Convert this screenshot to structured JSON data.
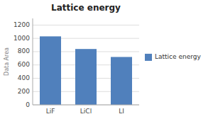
{
  "chart_data": {
    "type": "bar",
    "title": "Lattice energy",
    "categories": [
      "LiF",
      "LiCl",
      "LI"
    ],
    "series": [
      {
        "name": "Lattice energy",
        "color": "#5080BC",
        "values": [
          1030,
          840,
          720
        ]
      }
    ],
    "ylim": [
      0,
      1300
    ],
    "yticks": [
      0,
      200,
      400,
      600,
      800,
      1000,
      1200
    ],
    "grid": true,
    "legend": "right",
    "annotations": [
      "Data Area"
    ]
  }
}
